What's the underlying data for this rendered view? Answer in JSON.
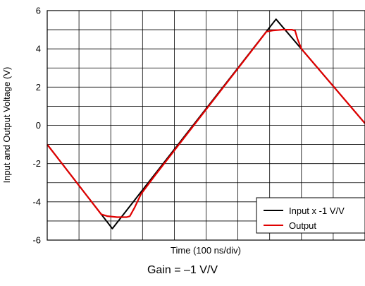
{
  "chart_data": {
    "type": "line",
    "xlabel": "Time (100 ns/div)",
    "ylabel": "Input and Output Voltage (V)",
    "caption": "Gain = –1 V/V",
    "xlim": [
      0,
      10
    ],
    "ylim": [
      -6,
      6
    ],
    "x_major_ticks": 10,
    "y_minor_step": 1,
    "yticks": [
      -6,
      -4,
      -2,
      0,
      2,
      4,
      6
    ],
    "ytick_labels": [
      "-6",
      "-4",
      "-2",
      "0",
      "2",
      "4",
      "6"
    ],
    "grid": true,
    "legend_position": "bottom-right",
    "series": [
      {
        "name": "Input x -1 V/V",
        "color": "#000000",
        "x": [
          0,
          2.05,
          7.2,
          10
        ],
        "y": [
          -1,
          -5.4,
          5.55,
          0.1
        ]
      },
      {
        "name": "Output",
        "color": "#e00000",
        "x": [
          0,
          1.7,
          1.9,
          2.2,
          2.5,
          2.6,
          2.75,
          2.95,
          3.4,
          6.9,
          7.1,
          7.4,
          7.7,
          7.8,
          7.88,
          8.0,
          10
        ],
        "y": [
          -1,
          -4.65,
          -4.75,
          -4.8,
          -4.8,
          -4.75,
          -4.3,
          -3.6,
          -2.6,
          4.9,
          4.96,
          5.0,
          5.0,
          4.95,
          4.5,
          4.0,
          0.1
        ]
      }
    ]
  }
}
